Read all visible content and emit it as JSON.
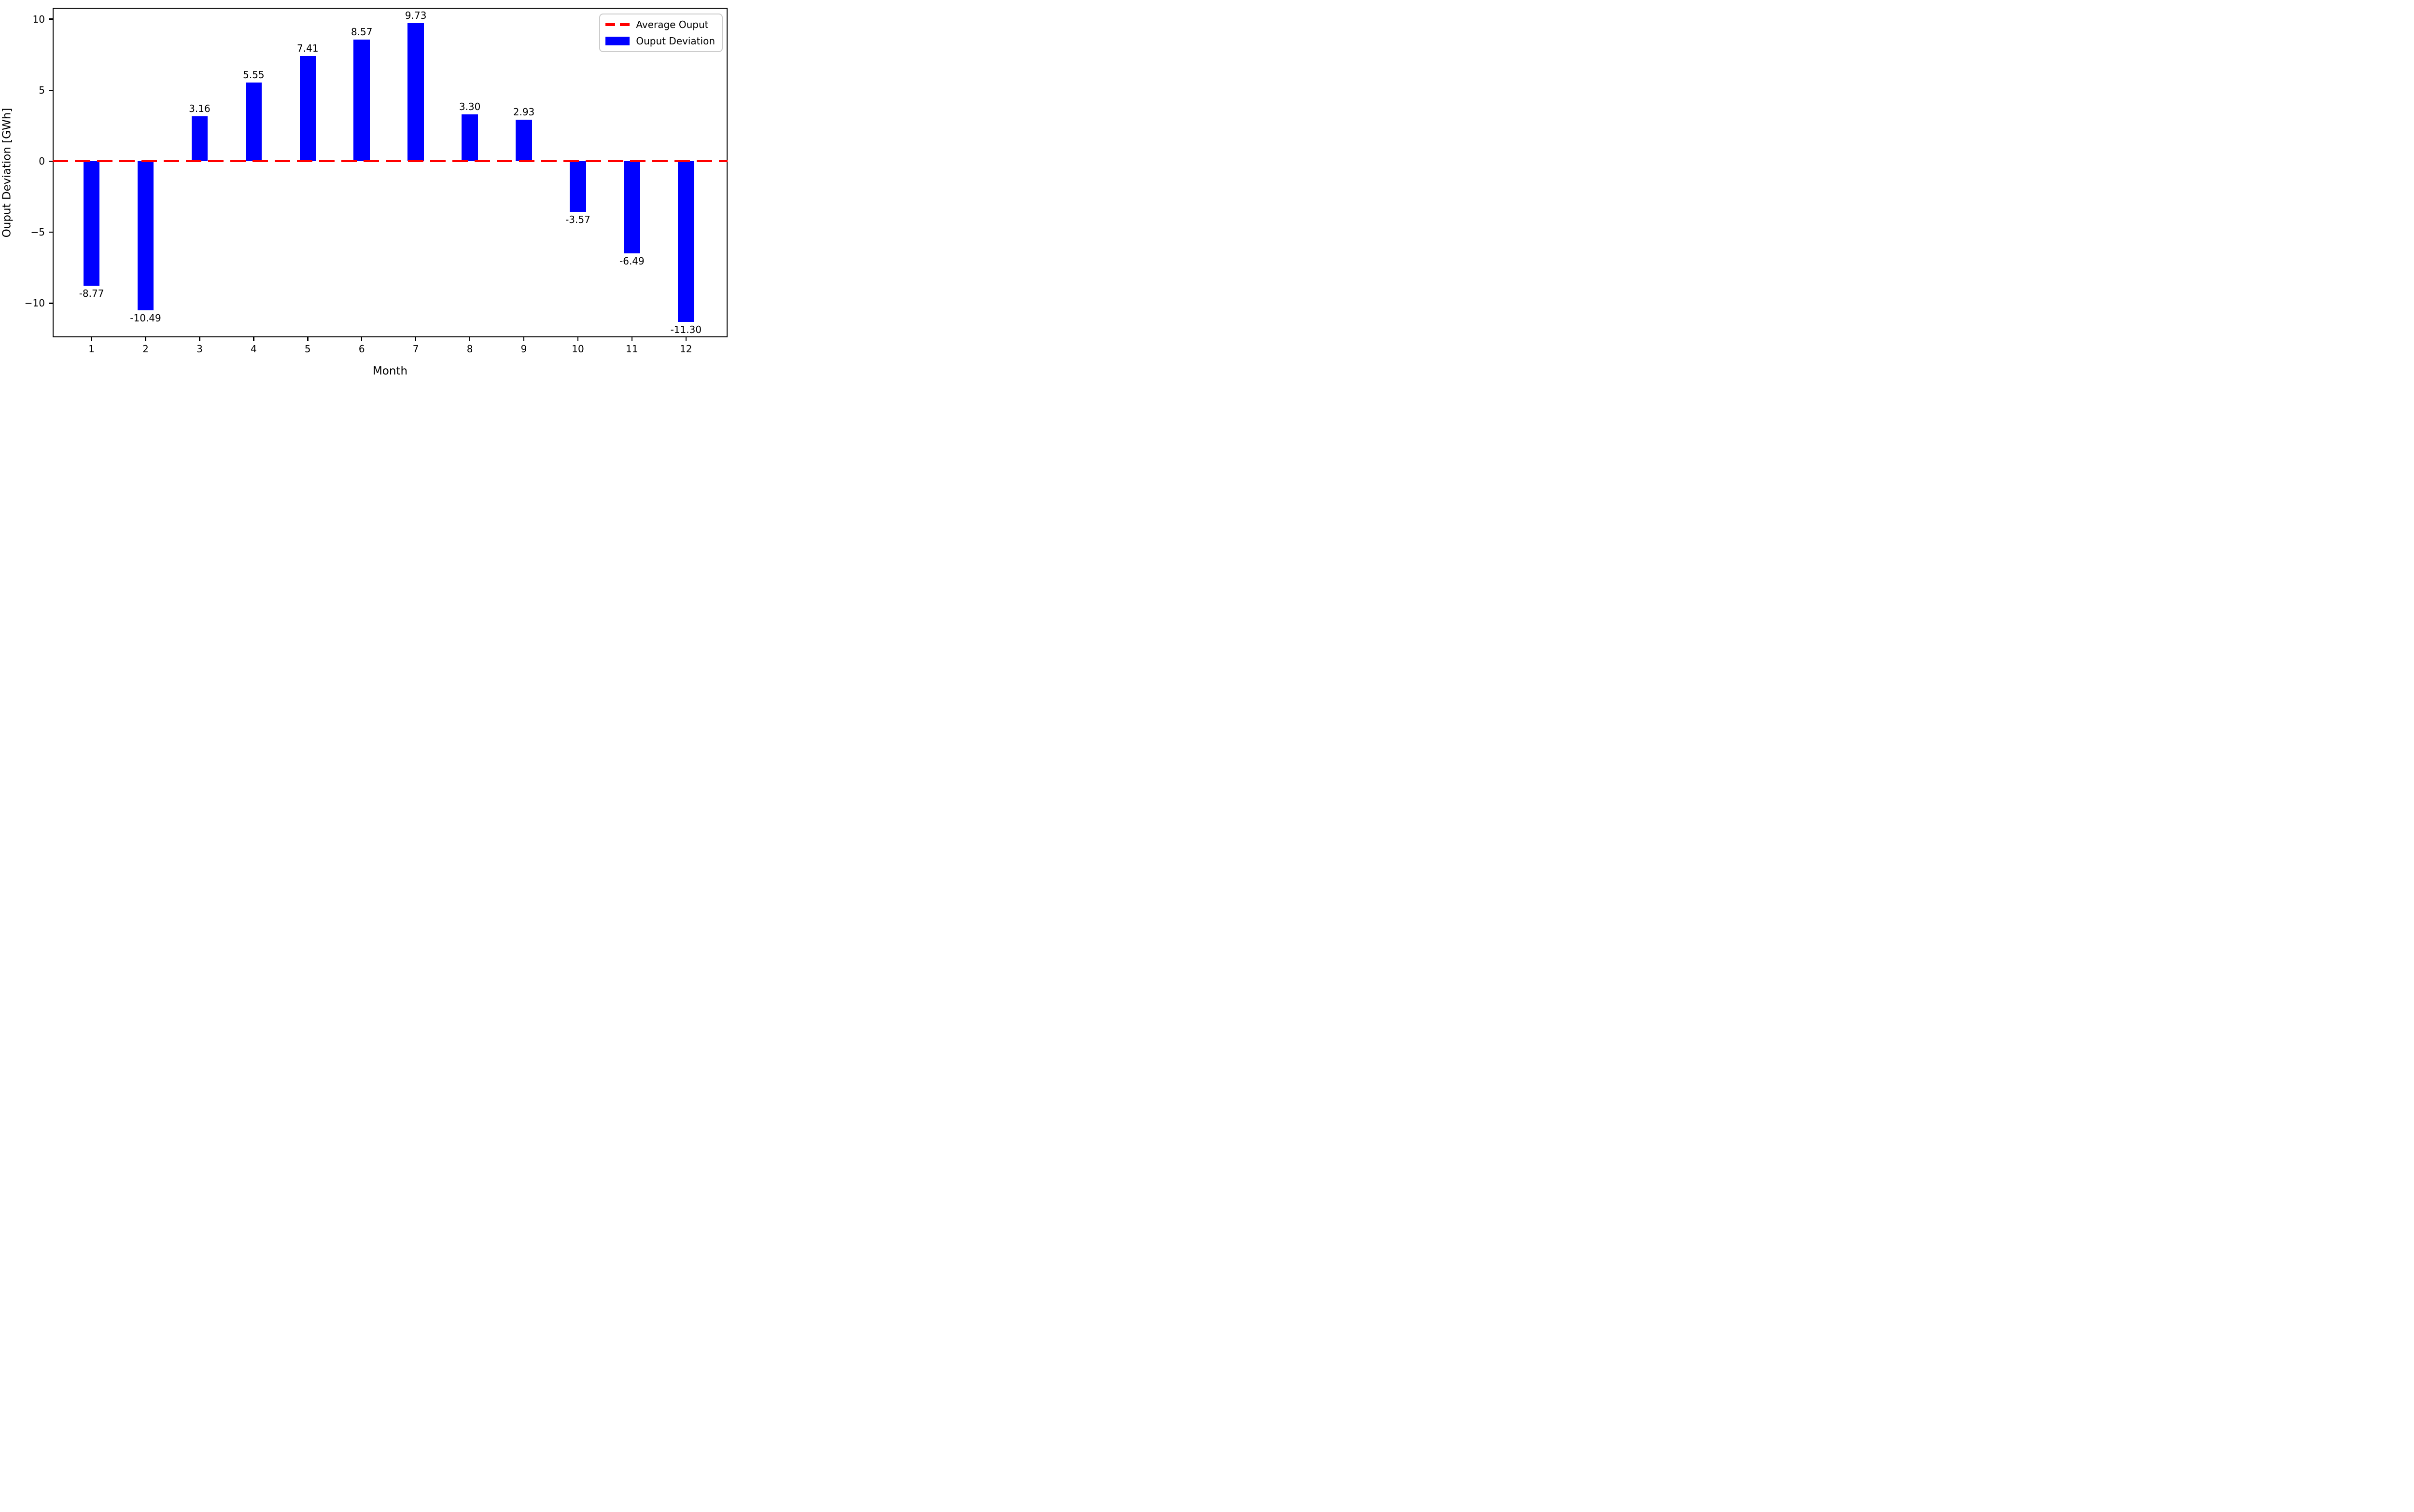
{
  "figure": {
    "background": "#ffffff"
  },
  "axes": {
    "xlabel": "Month",
    "ylabel": "Ouput Deviation [GWh]",
    "x_tick_labels": [
      "1",
      "2",
      "3",
      "4",
      "5",
      "6",
      "7",
      "8",
      "9",
      "10",
      "11",
      "12"
    ],
    "y_tick_labels": [
      "10",
      "5",
      "0",
      "−5",
      "−10"
    ]
  },
  "legend": {
    "position": "upper right",
    "items": [
      {
        "label": "Average Ouput",
        "marker": "dashed-line",
        "color": "#ff0000"
      },
      {
        "label": "Ouput Deviation",
        "marker": "filled-rect",
        "color": "#0000ff"
      }
    ]
  },
  "chart_data": {
    "type": "bar",
    "categories": [
      1,
      2,
      3,
      4,
      5,
      6,
      7,
      8,
      9,
      10,
      11,
      12
    ],
    "values": [
      -8.77,
      -10.49,
      3.16,
      5.55,
      7.41,
      8.57,
      9.73,
      3.3,
      2.93,
      -3.57,
      -6.49,
      -11.3
    ],
    "bar_labels": [
      "-8.77",
      "-10.49",
      "3.16",
      "5.55",
      "7.41",
      "8.57",
      "9.73",
      "3.30",
      "2.93",
      "-3.57",
      "-6.49",
      "-11.30"
    ],
    "title": "",
    "xlabel": "Month",
    "ylabel": "Ouput Deviation [GWh]",
    "yticks": [
      10,
      5,
      0,
      -5,
      -10
    ],
    "xlim": [
      0.28,
      12.77
    ],
    "ylim": [
      -12.4,
      10.8
    ],
    "bar_width": 0.3,
    "bar_color": "#0000ff",
    "grid": false,
    "legend_position": "upper right",
    "average_line": {
      "y": 0.0,
      "color": "#ff0000",
      "style": "dashed",
      "legend_label": "Average Ouput"
    },
    "series_legend_label": "Ouput Deviation"
  }
}
